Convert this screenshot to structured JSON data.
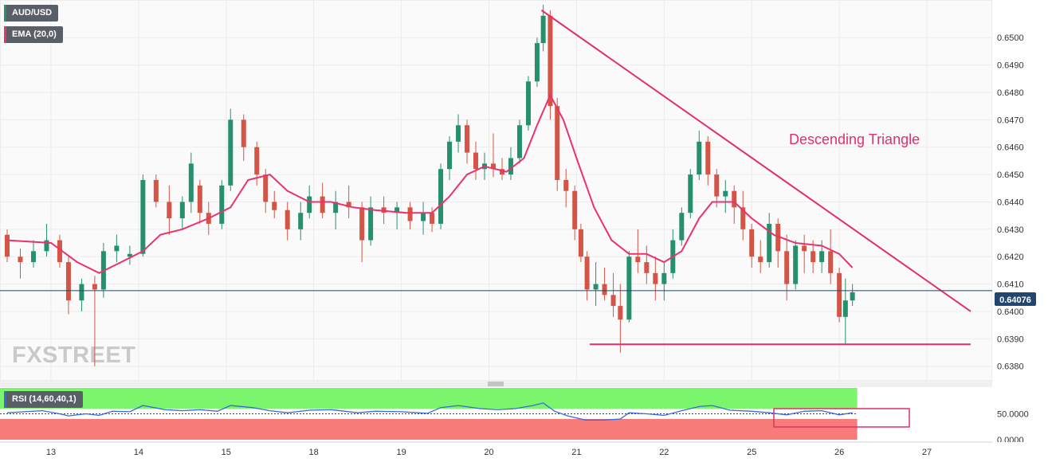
{
  "header": {
    "symbol_label": "AUD/USD",
    "ema_label": "EMA (20,0)",
    "rsi_label": "RSI (14,60,40,1)",
    "watermark": "FXSTREET"
  },
  "annotation": {
    "pattern_label": "Descending Triangle"
  },
  "price_tag": "0.64076",
  "colors": {
    "bull": "#26906e",
    "bear": "#d45545",
    "ema": "#e8336e",
    "trendline": "#e0306a",
    "price_line": "#23466e",
    "rsi_line": "#3a6ad6",
    "rsi_high_zone": "#7bf56b",
    "rsi_low_zone": "#f77b78"
  },
  "chart_data": {
    "type": "candlestick",
    "price_axis": {
      "ticks": [
        "0.6500",
        "0.6490",
        "0.6480",
        "0.6470",
        "0.6460",
        "0.6450",
        "0.6440",
        "0.6430",
        "0.6420",
        "0.6410",
        "0.6400",
        "0.6390",
        "0.6380"
      ],
      "range": [
        0.6377,
        0.6512
      ]
    },
    "x_axis": {
      "ticks": [
        {
          "label": "13",
          "x": 0.5
        },
        {
          "label": "14",
          "x": 1.5
        },
        {
          "label": "15",
          "x": 2.5
        },
        {
          "label": "18",
          "x": 3.5
        },
        {
          "label": "19",
          "x": 4.5
        },
        {
          "label": "20",
          "x": 5.5
        },
        {
          "label": "21",
          "x": 6.5
        },
        {
          "label": "22",
          "x": 7.5
        },
        {
          "label": "25",
          "x": 8.5
        },
        {
          "label": "26",
          "x": 9.5
        },
        {
          "label": "27",
          "x": 10.5
        }
      ],
      "range": [
        0,
        11
      ]
    },
    "ohlc": [
      [
        0.0,
        0.6428,
        0.643,
        0.6418,
        0.642
      ],
      [
        0.15,
        0.642,
        0.6423,
        0.6412,
        0.6418
      ],
      [
        0.3,
        0.6418,
        0.6426,
        0.6416,
        0.6422
      ],
      [
        0.45,
        0.6422,
        0.6432,
        0.642,
        0.6426
      ],
      [
        0.6,
        0.6426,
        0.6428,
        0.6416,
        0.6418
      ],
      [
        0.7,
        0.6418,
        0.642,
        0.6399,
        0.6404
      ],
      [
        0.85,
        0.6404,
        0.6412,
        0.64,
        0.641
      ],
      [
        1.0,
        0.641,
        0.6413,
        0.638,
        0.6408
      ],
      [
        1.1,
        0.6408,
        0.6425,
        0.6405,
        0.6422
      ],
      [
        1.25,
        0.6422,
        0.6428,
        0.6418,
        0.6424
      ],
      [
        1.4,
        0.642,
        0.6424,
        0.6417,
        0.6421
      ],
      [
        1.55,
        0.6421,
        0.645,
        0.642,
        0.6448
      ],
      [
        1.7,
        0.6448,
        0.645,
        0.6438,
        0.644
      ],
      [
        1.85,
        0.644,
        0.6446,
        0.6428,
        0.6434
      ],
      [
        2.0,
        0.6434,
        0.6442,
        0.643,
        0.644
      ],
      [
        2.1,
        0.644,
        0.6458,
        0.6436,
        0.6454
      ],
      [
        2.2,
        0.6446,
        0.6448,
        0.6432,
        0.6436
      ],
      [
        2.3,
        0.6436,
        0.644,
        0.6428,
        0.6432
      ],
      [
        2.45,
        0.6432,
        0.6448,
        0.643,
        0.6446
      ],
      [
        2.55,
        0.6446,
        0.6474,
        0.6444,
        0.647
      ],
      [
        2.7,
        0.647,
        0.6472,
        0.6455,
        0.646
      ],
      [
        2.85,
        0.646,
        0.6462,
        0.6446,
        0.645
      ],
      [
        2.95,
        0.645,
        0.6452,
        0.6436,
        0.644
      ],
      [
        3.05,
        0.644,
        0.6444,
        0.6434,
        0.6437
      ],
      [
        3.2,
        0.6437,
        0.644,
        0.6426,
        0.643
      ],
      [
        3.35,
        0.643,
        0.644,
        0.6426,
        0.6436
      ],
      [
        3.45,
        0.6436,
        0.6446,
        0.6434,
        0.6442
      ],
      [
        3.6,
        0.6442,
        0.6447,
        0.6434,
        0.6436
      ],
      [
        3.75,
        0.6436,
        0.6444,
        0.643,
        0.644
      ],
      [
        3.9,
        0.644,
        0.6446,
        0.6434,
        0.6438
      ],
      [
        4.05,
        0.6438,
        0.644,
        0.6418,
        0.6426
      ],
      [
        4.15,
        0.6426,
        0.6442,
        0.6424,
        0.6438
      ],
      [
        4.3,
        0.6438,
        0.6442,
        0.6432,
        0.6436
      ],
      [
        4.45,
        0.6436,
        0.644,
        0.643,
        0.6438
      ],
      [
        4.6,
        0.6438,
        0.644,
        0.643,
        0.6433
      ],
      [
        4.75,
        0.6433,
        0.644,
        0.6428,
        0.6436
      ],
      [
        4.85,
        0.6436,
        0.6438,
        0.6429,
        0.6432
      ],
      [
        4.95,
        0.6432,
        0.6454,
        0.643,
        0.6452
      ],
      [
        5.05,
        0.6452,
        0.6464,
        0.6448,
        0.6462
      ],
      [
        5.15,
        0.6462,
        0.6472,
        0.6458,
        0.6468
      ],
      [
        5.25,
        0.6468,
        0.647,
        0.6454,
        0.6458
      ],
      [
        5.35,
        0.6458,
        0.6462,
        0.6448,
        0.6452
      ],
      [
        5.45,
        0.6452,
        0.6458,
        0.6448,
        0.6454
      ],
      [
        5.55,
        0.6454,
        0.6465,
        0.6449,
        0.6452
      ],
      [
        5.65,
        0.6452,
        0.6456,
        0.6448,
        0.645
      ],
      [
        5.75,
        0.645,
        0.646,
        0.6448,
        0.6456
      ],
      [
        5.85,
        0.6456,
        0.647,
        0.6454,
        0.6468
      ],
      [
        5.95,
        0.6468,
        0.6486,
        0.6466,
        0.6484
      ],
      [
        6.05,
        0.6484,
        0.65,
        0.6482,
        0.6498
      ],
      [
        6.12,
        0.6498,
        0.6512,
        0.6495,
        0.6508
      ],
      [
        6.2,
        0.6508,
        0.651,
        0.647,
        0.6475
      ],
      [
        6.28,
        0.6475,
        0.6478,
        0.6444,
        0.6448
      ],
      [
        6.38,
        0.6448,
        0.6452,
        0.6438,
        0.6444
      ],
      [
        6.48,
        0.6444,
        0.6446,
        0.6426,
        0.643
      ],
      [
        6.55,
        0.643,
        0.6432,
        0.6418,
        0.642
      ],
      [
        6.62,
        0.642,
        0.6422,
        0.6404,
        0.6408
      ],
      [
        6.72,
        0.6408,
        0.6418,
        0.6402,
        0.641
      ],
      [
        6.82,
        0.641,
        0.6416,
        0.6404,
        0.6406
      ],
      [
        6.92,
        0.6406,
        0.6414,
        0.6398,
        0.6402
      ],
      [
        7.0,
        0.6402,
        0.641,
        0.6385,
        0.6397
      ],
      [
        7.1,
        0.6397,
        0.6422,
        0.6396,
        0.642
      ],
      [
        7.2,
        0.642,
        0.643,
        0.6414,
        0.6418
      ],
      [
        7.3,
        0.6418,
        0.6424,
        0.641,
        0.6414
      ],
      [
        7.4,
        0.6414,
        0.642,
        0.6404,
        0.641
      ],
      [
        7.5,
        0.641,
        0.6418,
        0.6404,
        0.6414
      ],
      [
        7.6,
        0.6414,
        0.643,
        0.6412,
        0.6426
      ],
      [
        7.7,
        0.6426,
        0.6438,
        0.6424,
        0.6436
      ],
      [
        7.8,
        0.6436,
        0.6452,
        0.6434,
        0.645
      ],
      [
        7.9,
        0.645,
        0.6466,
        0.6448,
        0.6462
      ],
      [
        8.0,
        0.6462,
        0.6464,
        0.6446,
        0.645
      ],
      [
        8.1,
        0.645,
        0.6452,
        0.6438,
        0.6442
      ],
      [
        8.2,
        0.6442,
        0.6448,
        0.6436,
        0.6444
      ],
      [
        8.3,
        0.6444,
        0.6446,
        0.6432,
        0.6438
      ],
      [
        8.4,
        0.6438,
        0.6444,
        0.6426,
        0.643
      ],
      [
        8.5,
        0.643,
        0.6432,
        0.6416,
        0.642
      ],
      [
        8.6,
        0.642,
        0.6426,
        0.6414,
        0.6418
      ],
      [
        8.7,
        0.6418,
        0.6436,
        0.6416,
        0.6432
      ],
      [
        8.8,
        0.6432,
        0.6434,
        0.6416,
        0.6422
      ],
      [
        8.9,
        0.6422,
        0.6428,
        0.6404,
        0.641
      ],
      [
        9.0,
        0.641,
        0.6426,
        0.6408,
        0.6424
      ],
      [
        9.1,
        0.6424,
        0.6428,
        0.6414,
        0.6422
      ],
      [
        9.2,
        0.6422,
        0.6426,
        0.6414,
        0.6418
      ],
      [
        9.3,
        0.6418,
        0.6426,
        0.6414,
        0.6422
      ],
      [
        9.4,
        0.6422,
        0.643,
        0.641,
        0.6414
      ],
      [
        9.5,
        0.6414,
        0.6416,
        0.6396,
        0.6398
      ],
      [
        9.57,
        0.6398,
        0.6412,
        0.6388,
        0.6404
      ],
      [
        9.65,
        0.6404,
        0.641,
        0.6402,
        0.6407
      ]
    ],
    "ema": [
      [
        0.0,
        0.6426
      ],
      [
        0.5,
        0.6425
      ],
      [
        0.8,
        0.6418
      ],
      [
        1.05,
        0.6414
      ],
      [
        1.3,
        0.6418
      ],
      [
        1.55,
        0.6422
      ],
      [
        1.75,
        0.6428
      ],
      [
        2.0,
        0.643
      ],
      [
        2.3,
        0.6434
      ],
      [
        2.55,
        0.6438
      ],
      [
        2.75,
        0.6448
      ],
      [
        3.0,
        0.645
      ],
      [
        3.2,
        0.6444
      ],
      [
        3.45,
        0.644
      ],
      [
        3.7,
        0.644
      ],
      [
        3.95,
        0.6438
      ],
      [
        4.2,
        0.6437
      ],
      [
        4.55,
        0.6436
      ],
      [
        4.85,
        0.6436
      ],
      [
        5.05,
        0.6442
      ],
      [
        5.25,
        0.645
      ],
      [
        5.45,
        0.6453
      ],
      [
        5.7,
        0.6451
      ],
      [
        5.9,
        0.6456
      ],
      [
        6.05,
        0.6468
      ],
      [
        6.2,
        0.6479
      ],
      [
        6.35,
        0.647
      ],
      [
        6.5,
        0.6456
      ],
      [
        6.7,
        0.6438
      ],
      [
        6.9,
        0.6426
      ],
      [
        7.1,
        0.6421
      ],
      [
        7.3,
        0.6421
      ],
      [
        7.5,
        0.6418
      ],
      [
        7.7,
        0.6422
      ],
      [
        7.9,
        0.6434
      ],
      [
        8.05,
        0.644
      ],
      [
        8.3,
        0.644
      ],
      [
        8.5,
        0.6434
      ],
      [
        8.75,
        0.6428
      ],
      [
        9.0,
        0.6425
      ],
      [
        9.3,
        0.6424
      ],
      [
        9.5,
        0.6421
      ],
      [
        9.65,
        0.6416
      ]
    ],
    "trendline": [
      [
        6.1,
        0.651
      ],
      [
        11.0,
        0.64
      ]
    ],
    "support_line": [
      [
        6.65,
        0.6388
      ],
      [
        11.0,
        0.6388
      ]
    ],
    "current_price": 0.64076,
    "rsi": {
      "axis_ticks": [
        {
          "label": "50.0000",
          "value": 50
        },
        {
          "label": "0.0000",
          "value": 0
        }
      ],
      "range": [
        0,
        100
      ],
      "levels": [
        40,
        60
      ],
      "values": [
        [
          0.0,
          52
        ],
        [
          0.2,
          54
        ],
        [
          0.4,
          56
        ],
        [
          0.6,
          50
        ],
        [
          0.7,
          46
        ],
        [
          0.9,
          50
        ],
        [
          1.05,
          47
        ],
        [
          1.2,
          55
        ],
        [
          1.4,
          54
        ],
        [
          1.55,
          66
        ],
        [
          1.8,
          58
        ],
        [
          2.0,
          56
        ],
        [
          2.2,
          58
        ],
        [
          2.4,
          55
        ],
        [
          2.55,
          66
        ],
        [
          2.8,
          62
        ],
        [
          3.0,
          56
        ],
        [
          3.2,
          52
        ],
        [
          3.45,
          57
        ],
        [
          3.7,
          58
        ],
        [
          4.0,
          52
        ],
        [
          4.2,
          55
        ],
        [
          4.5,
          54
        ],
        [
          4.8,
          51
        ],
        [
          4.95,
          62
        ],
        [
          5.15,
          66
        ],
        [
          5.4,
          60
        ],
        [
          5.6,
          58
        ],
        [
          5.8,
          60
        ],
        [
          6.0,
          66
        ],
        [
          6.12,
          71
        ],
        [
          6.25,
          55
        ],
        [
          6.4,
          46
        ],
        [
          6.6,
          38
        ],
        [
          6.8,
          38
        ],
        [
          7.0,
          40
        ],
        [
          7.1,
          52
        ],
        [
          7.3,
          50
        ],
        [
          7.5,
          47
        ],
        [
          7.7,
          56
        ],
        [
          7.9,
          64
        ],
        [
          8.05,
          66
        ],
        [
          8.25,
          57
        ],
        [
          8.5,
          55
        ],
        [
          8.7,
          52
        ],
        [
          8.9,
          48
        ],
        [
          9.1,
          55
        ],
        [
          9.3,
          56
        ],
        [
          9.5,
          48
        ],
        [
          9.65,
          52
        ]
      ]
    }
  }
}
